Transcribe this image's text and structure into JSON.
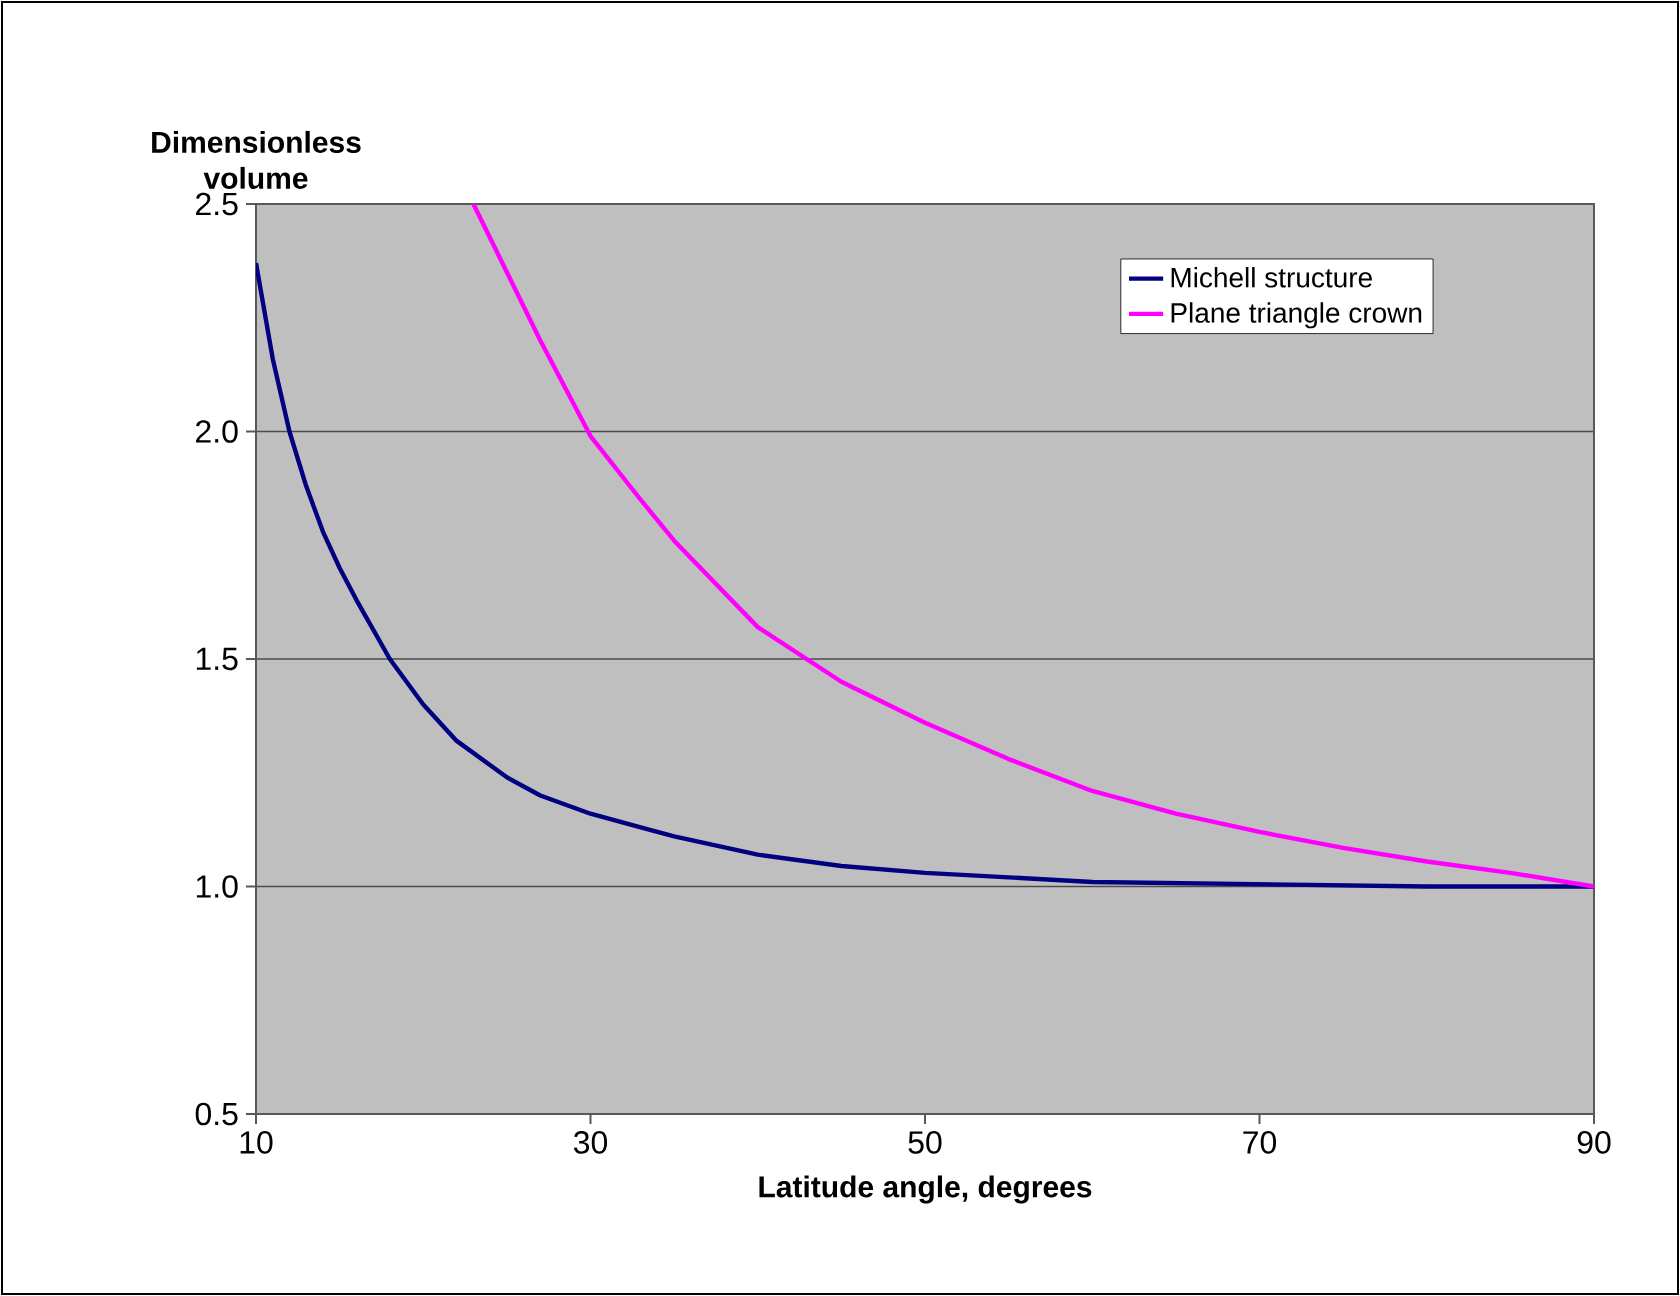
{
  "chart_data": {
    "type": "line",
    "xlabel": "Latitude angle, degrees",
    "ylabel": "Dimensionless volume",
    "xlim": [
      10,
      90
    ],
    "xticks": [
      10,
      30,
      50,
      70,
      90
    ],
    "ylim": [
      0.5,
      2.5
    ],
    "yticks": [
      {
        "value": 0.5,
        "label": "0.5"
      },
      {
        "value": 1.0,
        "label": "1.0"
      },
      {
        "value": 1.5,
        "label": "1.5"
      },
      {
        "value": 2.0,
        "label": "2.0"
      },
      {
        "value": 2.5,
        "label": "2.5"
      }
    ],
    "grid": "y",
    "legend": "top right",
    "series": [
      {
        "name": "Michell structure",
        "color": "#000080",
        "x": [
          10,
          11,
          12,
          13,
          14,
          15,
          16,
          18,
          20,
          22,
          25,
          27,
          30,
          33,
          35,
          40,
          45,
          50,
          55,
          60,
          70,
          80,
          90
        ],
        "values": [
          2.37,
          2.16,
          2.0,
          1.88,
          1.78,
          1.7,
          1.63,
          1.5,
          1.4,
          1.32,
          1.24,
          1.2,
          1.16,
          1.13,
          1.11,
          1.07,
          1.045,
          1.03,
          1.02,
          1.01,
          1.005,
          1.0,
          1.0
        ]
      },
      {
        "name": "Plane triangle crown",
        "color": "#ff00ff",
        "x": [
          23,
          25,
          27,
          30,
          33,
          35,
          40,
          45,
          50,
          55,
          60,
          65,
          70,
          75,
          80,
          85,
          90
        ],
        "values": [
          2.5,
          2.35,
          2.2,
          1.99,
          1.85,
          1.76,
          1.57,
          1.45,
          1.36,
          1.28,
          1.21,
          1.16,
          1.12,
          1.085,
          1.055,
          1.03,
          1.0
        ]
      }
    ]
  }
}
